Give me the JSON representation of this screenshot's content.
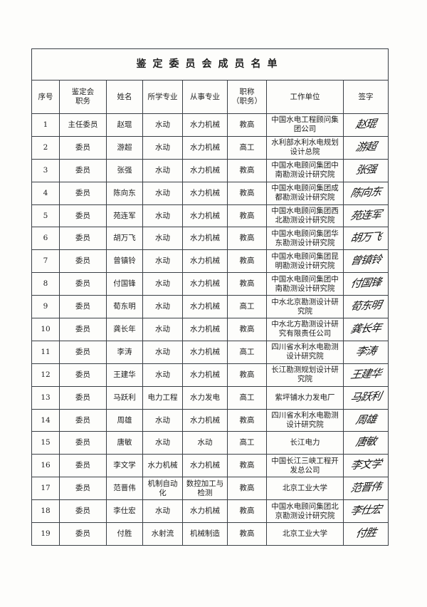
{
  "document": {
    "title": "鉴定委员会成员名单",
    "columns": [
      "序号",
      "鉴定会职务",
      "姓名",
      "所学专业",
      "从事专业",
      "职称（职务）",
      "工作单位",
      "签字"
    ],
    "header_lines": {
      "duty": [
        "鉴定会",
        "职务"
      ],
      "title": [
        "职称",
        "（职务）"
      ]
    },
    "rows": [
      {
        "no": "1",
        "role": "主任委员",
        "name": "赵琨",
        "major": "水动",
        "field": "水力机械",
        "rank": "教高",
        "org": "中国水电工程顾问集团公司",
        "signature": "赵琨"
      },
      {
        "no": "2",
        "role": "委员",
        "name": "游超",
        "major": "水动",
        "field": "水力机械",
        "rank": "高工",
        "org": "水利部水利水电规划设计总院",
        "signature": "游超"
      },
      {
        "no": "3",
        "role": "委员",
        "name": "张强",
        "major": "水动",
        "field": "水力机械",
        "rank": "教高",
        "org": "中国水电顾问集团中南勘测设计研究院",
        "signature": "张强"
      },
      {
        "no": "4",
        "role": "委员",
        "name": "陈向东",
        "major": "水动",
        "field": "水力机械",
        "rank": "教高",
        "org": "中国水电顾问集团成都勘测设计研究院",
        "signature": "陈向东"
      },
      {
        "no": "5",
        "role": "委员",
        "name": "苑连军",
        "major": "水动",
        "field": "水力机械",
        "rank": "教高",
        "org": "中国水电顾问集团西北勘测设计研究院",
        "signature": "苑连军"
      },
      {
        "no": "6",
        "role": "委员",
        "name": "胡万飞",
        "major": "水动",
        "field": "水力机械",
        "rank": "教高",
        "org": "中国水电顾问集团华东勘测设计研究院",
        "signature": "胡万飞"
      },
      {
        "no": "7",
        "role": "委员",
        "name": "曾镇铃",
        "major": "水动",
        "field": "水力机械",
        "rank": "教高",
        "org": "中国水电顾问集团昆明勘测设计研究院",
        "signature": "曾镇铃"
      },
      {
        "no": "8",
        "role": "委员",
        "name": "付国锋",
        "major": "水动",
        "field": "水力机械",
        "rank": "教高",
        "org": "中国水电顾问集团中南勘测设计研究院",
        "signature": "付国锋"
      },
      {
        "no": "9",
        "role": "委员",
        "name": "荀东明",
        "major": "水动",
        "field": "水力机械",
        "rank": "高工",
        "org": "中水北京勘测设计研究院",
        "signature": "荀东明"
      },
      {
        "no": "10",
        "role": "委员",
        "name": "龚长年",
        "major": "水动",
        "field": "水力机械",
        "rank": "教高",
        "org": "中水北方勘测设计研究有限责任公司",
        "signature": "龚长年"
      },
      {
        "no": "11",
        "role": "委员",
        "name": "李涛",
        "major": "水动",
        "field": "水力机械",
        "rank": "高工",
        "org": "四川省水利水电勘测设计研究院",
        "signature": "李涛"
      },
      {
        "no": "12",
        "role": "委员",
        "name": "王建华",
        "major": "水动",
        "field": "水力机械",
        "rank": "教高",
        "org": "长江勘测规划设计研究院",
        "signature": "王建华"
      },
      {
        "no": "13",
        "role": "委员",
        "name": "马跃利",
        "major": "电力工程",
        "field": "水力发电",
        "rank": "高工",
        "org": "紫坪铺水力发电厂",
        "signature": "马跃利"
      },
      {
        "no": "14",
        "role": "委员",
        "name": "周雄",
        "major": "水动",
        "field": "水力机械",
        "rank": "教高",
        "org": "四川省水利水电勘测设计研究院",
        "signature": "周雄"
      },
      {
        "no": "15",
        "role": "委员",
        "name": "唐敏",
        "major": "水动",
        "field": "水动",
        "rank": "高工",
        "org": "长江电力",
        "signature": "唐敏"
      },
      {
        "no": "16",
        "role": "委员",
        "name": "李文学",
        "major": "水力机械",
        "field": "水力机械",
        "rank": "教高",
        "org": "中国长江三峡工程开发总公司",
        "signature": "李文学"
      },
      {
        "no": "17",
        "role": "委员",
        "name": "范晋伟",
        "major": "机制自动化",
        "field": "数控加工与检测",
        "rank": "教高",
        "org": "北京工业大学",
        "signature": "范晋伟"
      },
      {
        "no": "18",
        "role": "委员",
        "name": "李仕宏",
        "major": "水动",
        "field": "水力机械",
        "rank": "教高",
        "org": "中国水电顾问集团北京勘测设计研究院",
        "signature": "李仕宏"
      },
      {
        "no": "19",
        "role": "委员",
        "name": "付胜",
        "major": "水射流",
        "field": "机械制造",
        "rank": "教高",
        "org": "北京工业大学",
        "signature": "付胜"
      }
    ]
  }
}
